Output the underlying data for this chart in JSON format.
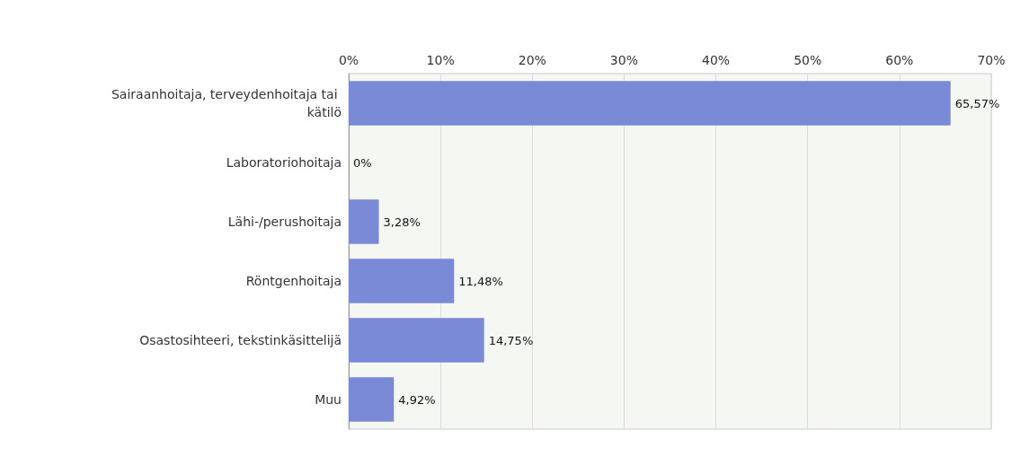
{
  "chart_data": {
    "type": "bar",
    "orientation": "horizontal",
    "categories": [
      "Sairaanhoitaja, terveydenhoitaja tai kätilö",
      "Laboratoriohoitaja",
      "Lähi-/perushoitaja",
      "Röntgenhoitaja",
      "Osastosihteeri, tekstinkäsittelijä",
      "Muu"
    ],
    "values": [
      65.57,
      0,
      3.28,
      11.48,
      14.75,
      4.92
    ],
    "value_labels": [
      "65,57%",
      "0%",
      "3,28%",
      "11,48%",
      "14,75%",
      "4,92%"
    ],
    "color": "#7b8ad6",
    "xlim": [
      0,
      70
    ],
    "xticks": [
      {
        "value": 0,
        "label": "0%"
      },
      {
        "value": 10,
        "label": "10%"
      },
      {
        "value": 20,
        "label": "20%"
      },
      {
        "value": 30,
        "label": "30%"
      },
      {
        "value": 40,
        "label": "40%"
      },
      {
        "value": 50,
        "label": "50%"
      },
      {
        "value": 60,
        "label": "60%"
      },
      {
        "value": 70,
        "label": "70%"
      }
    ],
    "grid": "x"
  }
}
